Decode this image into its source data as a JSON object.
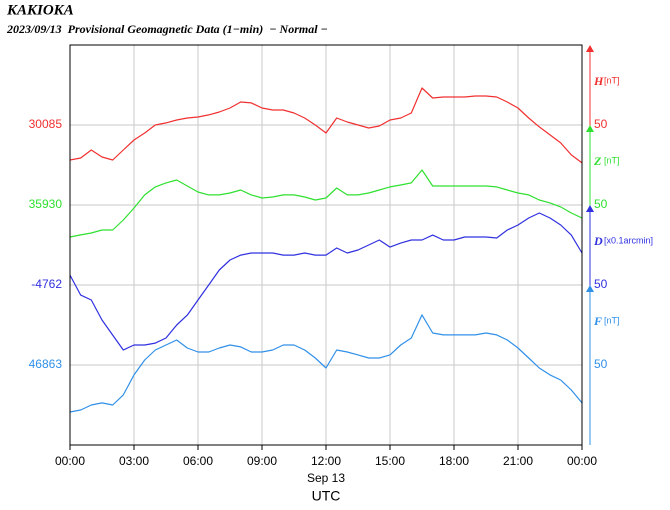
{
  "chart_data": {
    "type": "line",
    "title": "KAKIOKA",
    "subtitle": "2023/09/13  Provisional Geomagnetic Data (1−min)  − Normal −",
    "xlabel": "Sep 13",
    "xlabel2": "UTC",
    "xlim": [
      0,
      24
    ],
    "xticks": [
      {
        "value": 0,
        "label": "00:00"
      },
      {
        "value": 3,
        "label": "03:00"
      },
      {
        "value": 6,
        "label": "06:00"
      },
      {
        "value": 9,
        "label": "09:00"
      },
      {
        "value": 12,
        "label": "12:00"
      },
      {
        "value": 15,
        "label": "15:00"
      },
      {
        "value": 18,
        "label": "18:00"
      },
      {
        "value": 21,
        "label": "21:00"
      },
      {
        "value": 24,
        "label": "00:00"
      }
    ],
    "grid": true,
    "x": [
      0,
      0.5,
      1,
      1.5,
      2,
      2.5,
      3,
      3.5,
      4,
      4.5,
      5,
      5.5,
      6,
      6.5,
      7,
      7.5,
      8,
      8.5,
      9,
      9.5,
      10,
      10.5,
      11,
      11.5,
      12,
      12.5,
      13,
      13.5,
      14,
      14.5,
      15,
      15.5,
      16,
      16.5,
      17,
      17.5,
      18,
      18.5,
      19,
      19.5,
      20,
      20.5,
      21,
      21.5,
      22,
      22.5,
      23,
      23.5,
      24
    ],
    "series": [
      {
        "name": "H",
        "unit": "[nT]",
        "color": "#f03030",
        "scale": 50,
        "ylim": [
          29885,
          30135
        ],
        "yticks": [
          30085
        ],
        "values": [
          30063.1,
          30064.4,
          30069.4,
          30065.0,
          30063.1,
          30069.4,
          30075.6,
          30080.0,
          30085.0,
          30086.3,
          30088.1,
          30089.4,
          30090.0,
          30091.3,
          30093.1,
          30095.6,
          30099.4,
          30098.8,
          30095.6,
          30094.4,
          30094.4,
          30092.5,
          30089.4,
          30085.0,
          30080.0,
          30089.4,
          30086.9,
          30085.0,
          30083.1,
          30084.4,
          30088.1,
          30089.4,
          30092.5,
          30108.1,
          30101.9,
          30102.5,
          30102.5,
          30102.5,
          30103.1,
          30103.1,
          30102.5,
          30099.4,
          30095.6,
          30089.4,
          30083.8,
          30078.8,
          30073.8,
          30066.3,
          30061.3
        ]
      },
      {
        "name": "Z",
        "unit": "[nT]",
        "color": "#30e030",
        "scale": 50,
        "ylim": [
          35780,
          36030
        ],
        "yticks": [
          35930
        ],
        "values": [
          35910.0,
          35911.3,
          35912.5,
          35914.4,
          35914.4,
          35920.6,
          35928.1,
          35936.3,
          35941.3,
          35943.8,
          35945.6,
          35941.9,
          35938.1,
          35936.3,
          35936.3,
          35937.5,
          35939.4,
          35936.3,
          35934.4,
          35935.0,
          35936.3,
          35936.3,
          35935.0,
          35933.1,
          35934.4,
          35940.6,
          35936.3,
          35936.3,
          35937.5,
          35939.4,
          35941.3,
          35942.5,
          35943.8,
          35951.9,
          35941.9,
          35941.9,
          35941.9,
          35941.9,
          35941.9,
          35941.9,
          35941.3,
          35939.4,
          35937.5,
          35936.3,
          35933.1,
          35931.3,
          35928.8,
          35925.0,
          35921.9
        ]
      },
      {
        "name": "D",
        "unit": "[x0.1arcmin]",
        "color": "#3030e0",
        "scale": 50,
        "ylim": [
          -4862,
          -4612
        ],
        "yticks": [
          -4762
        ],
        "values": [
          -4755.8,
          -4768.3,
          -4771.4,
          -4783.9,
          -4793.3,
          -4802.6,
          -4799.5,
          -4799.5,
          -4798.3,
          -4795.1,
          -4787.0,
          -4780.8,
          -4771.4,
          -4762.0,
          -4752.6,
          -4746.4,
          -4743.3,
          -4742.0,
          -4742.0,
          -4742.0,
          -4743.3,
          -4743.3,
          -4742.0,
          -4743.3,
          -4743.3,
          -4738.9,
          -4742.0,
          -4740.1,
          -4737.0,
          -4733.9,
          -4738.3,
          -4735.8,
          -4733.9,
          -4733.9,
          -4730.8,
          -4733.9,
          -4733.9,
          -4732.0,
          -4732.0,
          -4732.0,
          -4732.6,
          -4727.6,
          -4724.5,
          -4720.1,
          -4717.0,
          -4720.1,
          -4724.5,
          -4730.8,
          -4742.0
        ]
      },
      {
        "name": "F",
        "unit": "[nT]",
        "color": "#3090e8",
        "scale": 50,
        "ylim": [
          46813,
          47063
        ],
        "yticks": [
          46863
        ],
        "values": [
          46833.6,
          46834.9,
          46838.0,
          46839.3,
          46838.0,
          46844.3,
          46856.8,
          46866.1,
          46872.4,
          46875.5,
          46878.6,
          46873.6,
          46871.1,
          46871.1,
          46873.6,
          46875.5,
          46874.3,
          46871.1,
          46871.1,
          46872.4,
          46875.5,
          46875.5,
          46872.4,
          46867.4,
          46861.1,
          46872.4,
          46871.1,
          46869.3,
          46867.4,
          46867.4,
          46869.3,
          46875.5,
          46879.9,
          46894.3,
          46883.0,
          46881.8,
          46881.8,
          46881.8,
          46881.8,
          46883.0,
          46881.8,
          46878.6,
          46873.6,
          46867.4,
          46861.1,
          46856.8,
          46853.6,
          46847.4,
          46839.3
        ]
      }
    ]
  }
}
